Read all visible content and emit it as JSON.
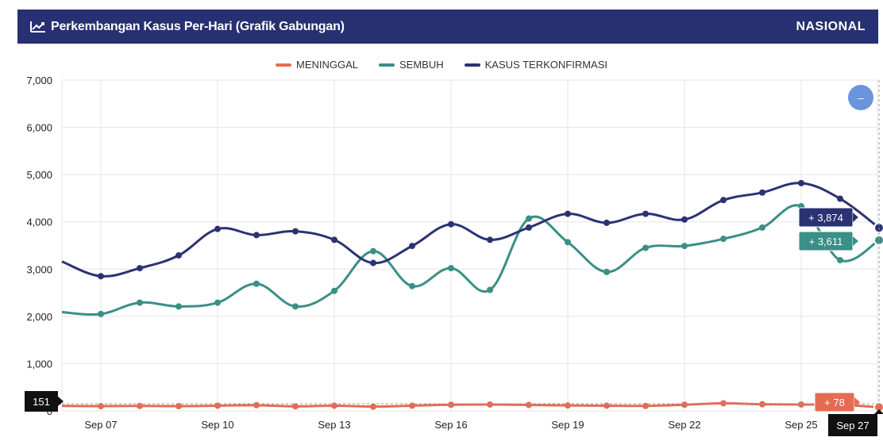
{
  "header": {
    "title": "Perkembangan Kasus Per-Hari (Grafik Gabungan)",
    "scope": "NASIONAL",
    "icon": "line-chart-icon"
  },
  "colors": {
    "header_bg": "#273071",
    "meninggal": "#e56b53",
    "sembuh": "#3a8f86",
    "kasus": "#2b3272",
    "zoom_button": "#6a95dd"
  },
  "chart_data": {
    "type": "line",
    "legend_position": "top-center",
    "grid": true,
    "ylim": [
      0,
      7000
    ],
    "y_ticks": [
      "0",
      "1,000",
      "2,000",
      "3,000",
      "4,000",
      "5,000",
      "6,000",
      "7,000"
    ],
    "x": [
      "Sep 06",
      "Sep 07",
      "Sep 08",
      "Sep 09",
      "Sep 10",
      "Sep 11",
      "Sep 12",
      "Sep 13",
      "Sep 14",
      "Sep 15",
      "Sep 16",
      "Sep 17",
      "Sep 18",
      "Sep 19",
      "Sep 20",
      "Sep 21",
      "Sep 22",
      "Sep 23",
      "Sep 24",
      "Sep 25",
      "Sep 26",
      "Sep 27"
    ],
    "x_tick_labels": [
      "Sep 07",
      "Sep 10",
      "Sep 13",
      "Sep 16",
      "Sep 19",
      "Sep 22",
      "Sep 25",
      "Sep 27"
    ],
    "series": [
      {
        "name": "MENINGGAL",
        "values": [
          105,
          100,
          105,
          100,
          110,
          120,
          95,
          110,
          90,
          110,
          130,
          135,
          125,
          115,
          110,
          105,
          130,
          160,
          140,
          135,
          125,
          78
        ]
      },
      {
        "name": "SEMBUH",
        "values": [
          2090,
          2050,
          2290,
          2210,
          2290,
          2690,
          2210,
          2540,
          3380,
          2640,
          3020,
          2560,
          4070,
          3570,
          2940,
          3450,
          3490,
          3640,
          3880,
          4330,
          3190,
          3611
        ]
      },
      {
        "name": "KASUS TERKONFIRMASI",
        "values": [
          3160,
          2850,
          3020,
          3290,
          3850,
          3720,
          3800,
          3620,
          3130,
          3490,
          3950,
          3620,
          3880,
          4170,
          3980,
          4170,
          4050,
          4460,
          4620,
          4820,
          4490,
          3874
        ]
      }
    ],
    "tooltips": {
      "kasus": "+ 3,874",
      "sembuh": "+ 3,611",
      "meninggal": "+ 78",
      "y_crosshair": "151",
      "x_crosshair": "Sep 27"
    }
  },
  "zoom_button_symbol": "–"
}
